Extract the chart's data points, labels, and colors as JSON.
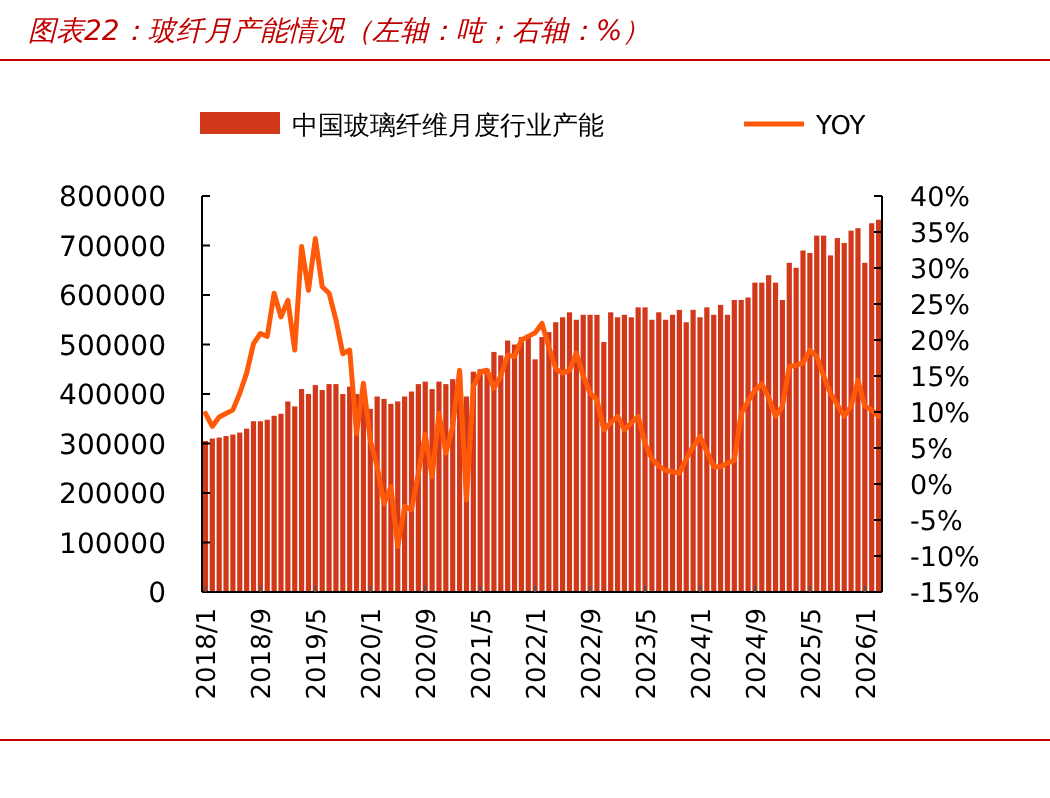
{
  "chart_data": {
    "type": "bar",
    "title": "图表22：玻纤月产能情况（左轴：吨；右轴：%）",
    "categories": [
      "2018/1",
      null,
      null,
      null,
      null,
      null,
      null,
      null,
      "2018/9",
      null,
      null,
      null,
      null,
      null,
      null,
      null,
      "2019/5",
      null,
      null,
      null,
      null,
      null,
      null,
      null,
      "2020/1",
      null,
      null,
      null,
      null,
      null,
      null,
      null,
      "2020/9",
      null,
      null,
      null,
      null,
      null,
      null,
      null,
      "2021/5",
      null,
      null,
      null,
      null,
      null,
      null,
      null,
      "2022/1",
      null,
      null,
      null,
      null,
      null,
      null,
      null,
      "2022/9",
      null,
      null,
      null,
      null,
      null,
      null,
      null,
      "2023/5",
      null,
      null,
      null,
      null,
      null,
      null,
      null,
      "2024/1",
      null,
      null,
      null,
      null,
      null,
      null,
      null,
      "2024/9",
      null,
      null,
      null,
      null,
      null,
      null,
      null,
      "2025/5",
      null,
      null,
      null,
      null,
      null,
      null,
      null,
      "2026/1",
      null,
      null
    ],
    "series": [
      {
        "name": "中国玻璃纤维月度行业产能",
        "color": "#d2391b",
        "values": [
          305000,
          310000,
          312000,
          315000,
          318000,
          322000,
          330000,
          345000,
          345000,
          348000,
          356000,
          360000,
          385000,
          375000,
          410000,
          400000,
          418000,
          408000,
          420000,
          420000,
          400000,
          415000,
          400000,
          395000,
          370000,
          395000,
          390000,
          380000,
          385000,
          395000,
          405000,
          420000,
          425000,
          410000,
          425000,
          420000,
          430000,
          440000,
          395000,
          445000,
          450000,
          450000,
          485000,
          478000,
          508000,
          500000,
          515000,
          520000,
          470000,
          515000,
          525000,
          545000,
          555000,
          565000,
          550000,
          560000,
          560000,
          560000,
          505000,
          565000,
          555000,
          560000,
          555000,
          575000,
          575000,
          550000,
          565000,
          550000,
          560000,
          570000,
          545000,
          570000,
          555000,
          575000,
          560000,
          580000,
          560000,
          590000,
          590000,
          595000,
          625000,
          625000,
          640000,
          625000,
          590000,
          665000,
          655000,
          690000,
          685000,
          720000,
          720000,
          680000,
          715000,
          705000,
          730000,
          735000,
          665000,
          745000,
          752000
        ]
      },
      {
        "name": "YOY",
        "type": "line",
        "axis": "y2",
        "color": "#ff5a0a",
        "values": [
          9.8,
          8,
          9.3,
          9.8,
          10.3,
          12.6,
          15.4,
          19.5,
          20.9,
          20.5,
          26.5,
          23.2,
          25.5,
          18.6,
          33,
          26.9,
          34.1,
          27.4,
          26.5,
          22.8,
          18.1,
          18.6,
          7,
          14,
          6.1,
          2.4,
          -2.7,
          -0.4,
          -8.7,
          -3.1,
          -3.6,
          1.5,
          6.9,
          1,
          9.8,
          4.3,
          8,
          15.8,
          -2.2,
          13.5,
          15.6,
          15.8,
          13.3,
          15,
          17.9,
          17.7,
          20,
          20.5,
          21,
          22.3,
          19,
          16,
          15.4,
          15.8,
          18.2,
          15,
          12.6,
          11.7,
          7.5,
          8.5,
          9.4,
          7.5,
          8.5,
          9.4,
          5.6,
          3.5,
          2.5,
          1.9,
          1.7,
          1.5,
          3.5,
          5.2,
          6.6,
          4.5,
          2.4,
          2.4,
          2.9,
          3.3,
          9.8,
          11.5,
          13,
          13.9,
          12,
          9.4,
          10.8,
          16.3,
          16.5,
          16.8,
          18.6,
          17.7,
          15,
          12.6,
          11,
          9.4,
          10.8,
          14.4,
          10.8,
          10.3,
          9.4
        ]
      }
    ],
    "ylim": [
      0,
      800000
    ],
    "yticks": [
      0,
      100000,
      200000,
      300000,
      400000,
      500000,
      600000,
      700000,
      800000
    ],
    "y2lim": [
      -15,
      40
    ],
    "y2ticks": [
      {
        "value": -15,
        "label": "-15%"
      },
      {
        "value": -10,
        "label": "-10%"
      },
      {
        "value": -5,
        "label": "-5%"
      },
      {
        "value": 0,
        "label": "0%"
      },
      {
        "value": 5,
        "label": "5%"
      },
      {
        "value": 10,
        "label": "10%"
      },
      {
        "value": 15,
        "label": "15%"
      },
      {
        "value": 20,
        "label": "20%"
      },
      {
        "value": 25,
        "label": "25%"
      },
      {
        "value": 30,
        "label": "30%"
      },
      {
        "value": 35,
        "label": "35%"
      },
      {
        "value": 40,
        "label": "40%"
      }
    ],
    "legend": "top"
  }
}
